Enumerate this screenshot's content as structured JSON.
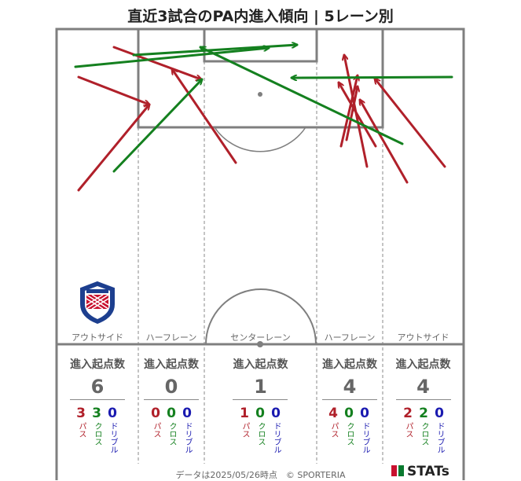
{
  "title": "直近3試合のPA内進入傾向 | 5レーン別",
  "footer": "データは2025/05/26時点　© SPORTERIA",
  "brand": "STATs",
  "colors": {
    "pass": "#b0202a",
    "cross": "#14801f",
    "dribble": "#1a1ab0",
    "line": "#7f7f7f"
  },
  "lanes": [
    {
      "label": "アウトサイド",
      "stat_title": "進入起点数",
      "total": "6",
      "pass": "3",
      "cross": "3",
      "dribble": "0"
    },
    {
      "label": "ハーフレーン",
      "stat_title": "進入起点数",
      "total": "0",
      "pass": "0",
      "cross": "0",
      "dribble": "0"
    },
    {
      "label": "センターレーン",
      "stat_title": "進入起点数",
      "total": "1",
      "pass": "1",
      "cross": "0",
      "dribble": "0"
    },
    {
      "label": "ハーフレーン",
      "stat_title": "進入起点数",
      "total": "4",
      "pass": "4",
      "cross": "0",
      "dribble": "0"
    },
    {
      "label": "アウトサイド",
      "stat_title": "進入起点数",
      "total": "4",
      "pass": "2",
      "cross": "2",
      "dribble": "0"
    }
  ],
  "type_labels": {
    "pass": "パス",
    "cross": "クロス",
    "dribble": "ドリブル"
  },
  "chart_data": {
    "type": "arrow-map",
    "arrows": [
      {
        "kind": "pass",
        "from": [
          100,
          242
        ],
        "to": [
          190,
          133
        ]
      },
      {
        "kind": "pass",
        "from": [
          100,
          98
        ],
        "to": [
          190,
          133
        ]
      },
      {
        "kind": "pass",
        "from": [
          145,
          60
        ],
        "to": [
          256,
          101
        ]
      },
      {
        "kind": "pass",
        "from": [
          300,
          207
        ],
        "to": [
          219,
          88
        ]
      },
      {
        "kind": "pass",
        "from": [
          434,
          186
        ],
        "to": [
          455,
          96
        ]
      },
      {
        "kind": "pass",
        "from": [
          467,
          212
        ],
        "to": [
          438,
          70
        ]
      },
      {
        "kind": "pass",
        "from": [
          478,
          186
        ],
        "to": [
          431,
          105
        ]
      },
      {
        "kind": "pass",
        "from": [
          441,
          178
        ],
        "to": [
          455,
          110
        ]
      },
      {
        "kind": "pass",
        "from": [
          518,
          232
        ],
        "to": [
          458,
          127
        ]
      },
      {
        "kind": "pass",
        "from": [
          566,
          212
        ],
        "to": [
          477,
          100
        ]
      },
      {
        "kind": "cross",
        "from": [
          96,
          85
        ],
        "to": [
          342,
          61
        ]
      },
      {
        "kind": "cross",
        "from": [
          145,
          218
        ],
        "to": [
          257,
          101
        ]
      },
      {
        "kind": "cross",
        "from": [
          170,
          70
        ],
        "to": [
          378,
          57
        ]
      },
      {
        "kind": "cross",
        "from": [
          512,
          183
        ],
        "to": [
          255,
          60
        ]
      },
      {
        "kind": "cross",
        "from": [
          575,
          98
        ],
        "to": [
          371,
          99
        ]
      }
    ]
  }
}
